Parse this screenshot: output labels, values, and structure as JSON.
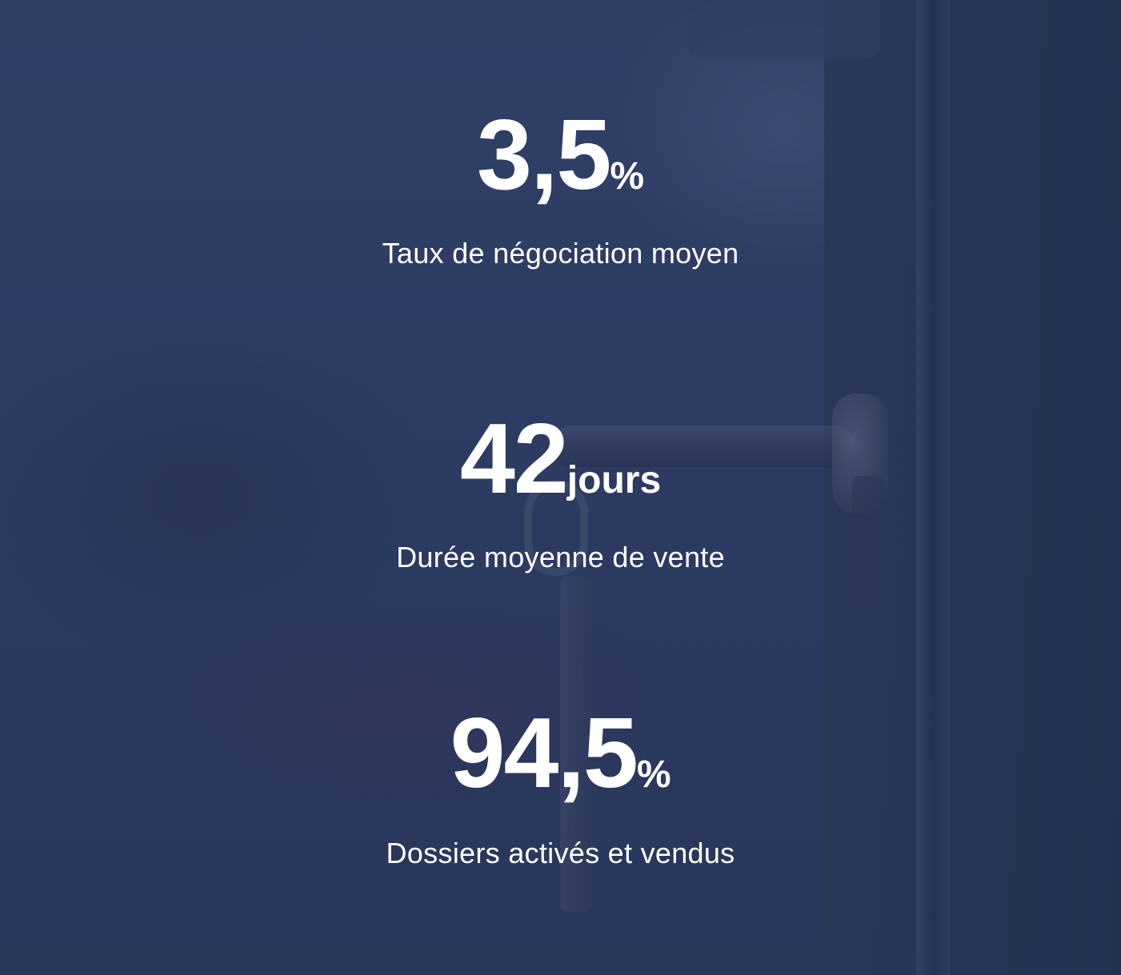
{
  "stats": [
    {
      "value": "3,5",
      "unit": "%",
      "label": "Taux de négociation moyen"
    },
    {
      "value": "42",
      "unit": "jours",
      "label": "Durée moyenne de vente"
    },
    {
      "value": "94,5",
      "unit": "%",
      "label": "Dossiers activés et vendus"
    }
  ]
}
